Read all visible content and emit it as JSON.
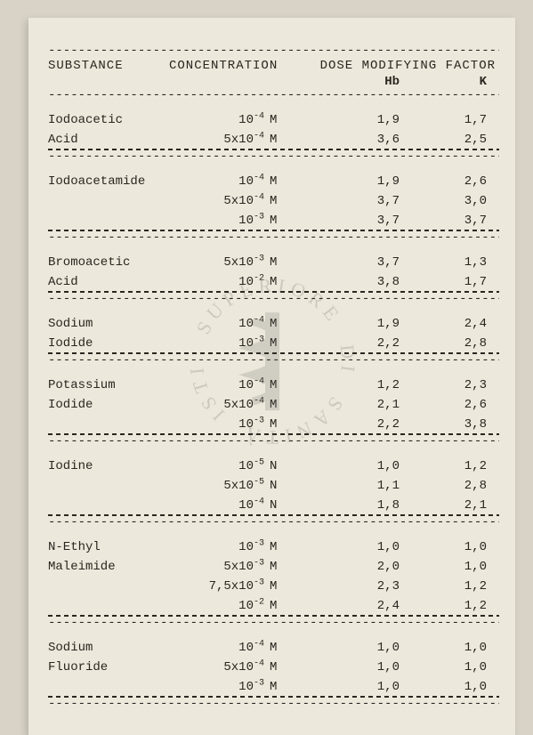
{
  "header": {
    "substance": "SUBSTANCE",
    "concentration": "CONCENTRATION",
    "dmf": "DOSE MODIFYING FACTOR",
    "hb": "Hb",
    "k": "K"
  },
  "groups": [
    {
      "rows": [
        {
          "sub": "Iodoacetic",
          "coef": "",
          "exp": "-4",
          "unit": "M",
          "hb": "1,9",
          "k": "1,7"
        },
        {
          "sub": "Acid",
          "coef": "5x",
          "exp": "-4",
          "unit": "M",
          "hb": "3,6",
          "k": "2,5"
        }
      ]
    },
    {
      "rows": [
        {
          "sub": "Iodoacetamide",
          "coef": "",
          "exp": "-4",
          "unit": "M",
          "hb": "1,9",
          "k": "2,6"
        },
        {
          "sub": "",
          "coef": "5x",
          "exp": "-4",
          "unit": "M",
          "hb": "3,7",
          "k": "3,0"
        },
        {
          "sub": "",
          "coef": "",
          "exp": "-3",
          "unit": "M",
          "hb": "3,7",
          "k": "3,7"
        }
      ]
    },
    {
      "rows": [
        {
          "sub": "Bromoacetic",
          "coef": "5x",
          "exp": "-3",
          "unit": "M",
          "hb": "3,7",
          "k": "1,3"
        },
        {
          "sub": "Acid",
          "coef": "",
          "exp": "-2",
          "unit": "M",
          "hb": "3,8",
          "k": "1,7"
        }
      ]
    },
    {
      "rows": [
        {
          "sub": "Sodium",
          "coef": "",
          "exp": "-4",
          "unit": "M",
          "hb": "1,9",
          "k": "2,4"
        },
        {
          "sub": "Iodide",
          "coef": "",
          "exp": "-3",
          "unit": "M",
          "hb": "2,2",
          "k": "2,8"
        }
      ]
    },
    {
      "rows": [
        {
          "sub": "Potassium",
          "coef": "",
          "exp": "-4",
          "unit": "M",
          "hb": "1,2",
          "k": "2,3"
        },
        {
          "sub": "Iodide",
          "coef": "5x",
          "exp": "-4",
          "unit": "M",
          "hb": "2,1",
          "k": "2,6"
        },
        {
          "sub": "",
          "coef": "",
          "exp": "-3",
          "unit": "M",
          "hb": "2,2",
          "k": "3,8"
        }
      ]
    },
    {
      "rows": [
        {
          "sub": "Iodine",
          "coef": "",
          "exp": "-5",
          "unit": "N",
          "hb": "1,0",
          "k": "1,2"
        },
        {
          "sub": "",
          "coef": "5x",
          "exp": "-5",
          "unit": "N",
          "hb": "1,1",
          "k": "2,8"
        },
        {
          "sub": "",
          "coef": "",
          "exp": "-4",
          "unit": "N",
          "hb": "1,8",
          "k": "2,1"
        }
      ]
    },
    {
      "rows": [
        {
          "sub": "N-Ethyl",
          "coef": "",
          "exp": "-3",
          "unit": "M",
          "hb": "1,0",
          "k": "1,0"
        },
        {
          "sub": "Maleimide",
          "coef": "5x",
          "exp": "-3",
          "unit": "M",
          "hb": "2,0",
          "k": "1,0"
        },
        {
          "sub": "",
          "coef": "7,5x",
          "exp": "-3",
          "unit": "M",
          "hb": "2,3",
          "k": "1,2"
        },
        {
          "sub": "",
          "coef": "",
          "exp": "-2",
          "unit": "M",
          "hb": "2,4",
          "k": "1,2"
        }
      ]
    },
    {
      "rows": [
        {
          "sub": "Sodium",
          "coef": "",
          "exp": "-4",
          "unit": "M",
          "hb": "1,0",
          "k": "1,0"
        },
        {
          "sub": "Fluoride",
          "coef": "5x",
          "exp": "-4",
          "unit": "M",
          "hb": "1,0",
          "k": "1,0"
        },
        {
          "sub": "",
          "coef": "",
          "exp": "-3",
          "unit": "M",
          "hb": "1,0",
          "k": "1,0"
        }
      ]
    }
  ],
  "colors": {
    "paper": "#ece8db",
    "bg": "#d8d3c6",
    "ink": "#2a2620"
  }
}
